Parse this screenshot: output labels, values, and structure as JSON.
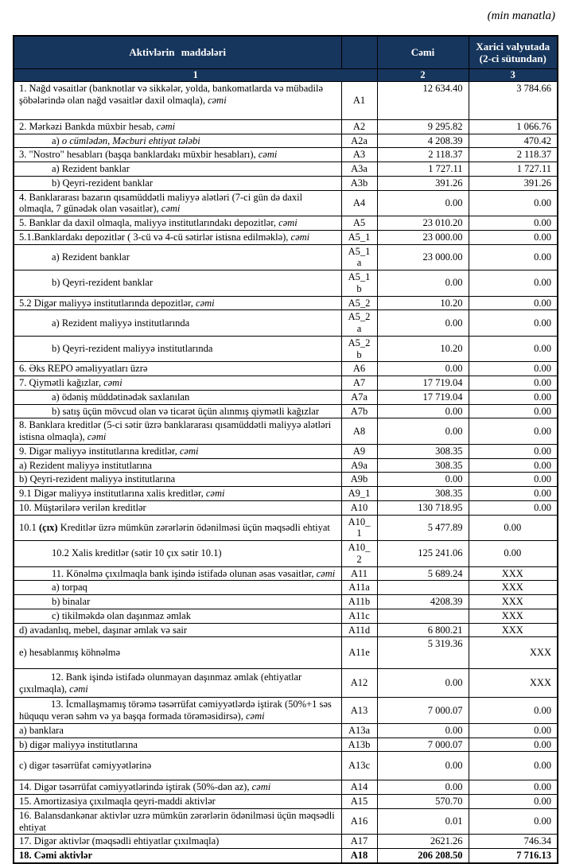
{
  "page": {
    "unit_note": "(min manatla)"
  },
  "colors": {
    "header_bg": "#17365d",
    "header_text": "#ffffff",
    "border": "#000000"
  },
  "table": {
    "header": {
      "items_label": "Aktivlərin  maddələri",
      "total_label": "Cəmi",
      "foreign_label": "Xarici valyutada (2-ci sütundan)",
      "num_items": "1",
      "num_total": "2",
      "num_foreign": "3"
    },
    "rows": [
      {
        "code": "A1",
        "total": "12 634.40",
        "foreign": "3 784.66",
        "cls": "vals-top h48",
        "parts": [
          {
            "t": "1. Nağd vəsaitlər (banknotlar və sikkələr, yolda, bankomatlarda və mübadilə şöbələrində olan nağd vəsaitlər daxil olmaqla), "
          },
          {
            "t": "cəmi",
            "s": "i"
          }
        ]
      },
      {
        "code": "A2",
        "total": "9 295.82",
        "foreign": "1 066.76",
        "cls": "",
        "parts": [
          {
            "t": "2. Mərkəzi Bankda müxbir hesab, "
          },
          {
            "t": "cəmi",
            "s": "i"
          }
        ]
      },
      {
        "code": "A2a",
        "total": "4 208.39",
        "foreign": "470.42",
        "cls": "indent",
        "parts": [
          {
            "t": "a) "
          },
          {
            "t": "o cümlədən, Məcburi ehtiyat tələbi",
            "s": "i"
          }
        ]
      },
      {
        "code": "A3",
        "total": "2 118.37",
        "foreign": "2 118.37",
        "cls": "",
        "parts": [
          {
            "t": "3. \"Nostro\" hesabları (başqa banklardakı müxbir hesabları), "
          },
          {
            "t": "cəmi",
            "s": "i"
          }
        ]
      },
      {
        "code": "A3a",
        "total": "1 727.11",
        "foreign": "1 727.11",
        "cls": "indent",
        "parts": [
          {
            "t": "a) Rezident banklar"
          }
        ]
      },
      {
        "code": "A3b",
        "total": "391.26",
        "foreign": "391.26",
        "cls": "indent",
        "parts": [
          {
            "t": "b) Qeyri-rezident banklar"
          }
        ]
      },
      {
        "code": "A4",
        "total": "0.00",
        "foreign": "0.00",
        "cls": "",
        "parts": [
          {
            "t": "4. Banklararası bazarın qısamüddətli maliyyə alətləri (7-ci gün də daxil olmaqla, 7 günədək olan vəsaitlər), "
          },
          {
            "t": "cəmi",
            "s": "i"
          }
        ]
      },
      {
        "code": "A5",
        "total": "23 010.20",
        "foreign": "0.00",
        "cls": "",
        "parts": [
          {
            "t": "5. Banklar da daxil olmaqla, maliyyə institutlarındakı depozitlər, "
          },
          {
            "t": "cəmi",
            "s": "i"
          }
        ]
      },
      {
        "code": "A5_1",
        "total": "23 000.00",
        "foreign": "0.00",
        "cls": "",
        "parts": [
          {
            "t": "5.1.Banklardakı depozitlər ( 3-cü və 4-cü sətirlər istisna edilməklə), "
          },
          {
            "t": "cəmi",
            "s": "i"
          }
        ]
      },
      {
        "code": "A5_1a",
        "total": "23 000.00",
        "foreign": "0.00",
        "cls": "indent",
        "parts": [
          {
            "t": "a) Rezident banklar"
          }
        ]
      },
      {
        "code": "A5_1b",
        "total": "0.00",
        "foreign": "0.00",
        "cls": "indent",
        "parts": [
          {
            "t": "b) Qeyri-rezident banklar"
          }
        ]
      },
      {
        "code": "A5_2",
        "total": "10.20",
        "foreign": "0.00",
        "cls": "",
        "parts": [
          {
            "t": "5.2 Digər maliyyə institutlarında depozitlər, "
          },
          {
            "t": "cəmi",
            "s": "i"
          }
        ]
      },
      {
        "code": "A5_2a",
        "total": "0.00",
        "foreign": "0.00",
        "cls": "indent",
        "parts": [
          {
            "t": "a) Rezident maliyyə institutlarında"
          }
        ]
      },
      {
        "code": "A5_2b",
        "total": "10.20",
        "foreign": "0.00",
        "cls": "indent",
        "parts": [
          {
            "t": "b) Qeyri-rezident maliyyə institutlarında"
          }
        ]
      },
      {
        "code": "A6",
        "total": "0.00",
        "foreign": "0.00",
        "cls": "",
        "parts": [
          {
            "t": "6. Əks REPO əməliyyatları üzrə"
          }
        ]
      },
      {
        "code": "A7",
        "total": "17 719.04",
        "foreign": "0.00",
        "cls": "",
        "parts": [
          {
            "t": "7. Qiymətli kağızlar, "
          },
          {
            "t": "cəmi",
            "s": "i"
          }
        ]
      },
      {
        "code": "A7a",
        "total": "17 719.04",
        "foreign": "0.00",
        "cls": "indent",
        "parts": [
          {
            "t": "a) ödəniş müddətinədək saxlanılan"
          }
        ]
      },
      {
        "code": "A7b",
        "total": "0.00",
        "foreign": "0.00",
        "cls": "indent",
        "parts": [
          {
            "t": "b) satış üçün mövcud olan  və ticarət üçün alınmış qiymətli kağızlar"
          }
        ]
      },
      {
        "code": "A8",
        "total": "0.00",
        "foreign": "0.00",
        "cls": "",
        "parts": [
          {
            "t": "8. Banklara kreditlər (5-ci sətir üzrə banklararası qısamüddətli maliyyə alətləri istisna olmaqla), "
          },
          {
            "t": "cəmi",
            "s": "i"
          }
        ]
      },
      {
        "code": "A9",
        "total": "308.35",
        "foreign": "0.00",
        "cls": "",
        "parts": [
          {
            "t": "9. Digər maliyyə institutlarına kreditlər, "
          },
          {
            "t": "cəmi",
            "s": "i"
          }
        ]
      },
      {
        "code": "A9a",
        "total": "308.35",
        "foreign": "0.00",
        "cls": "",
        "parts": [
          {
            "t": "a) Rezident maliyyə institutlarına"
          }
        ]
      },
      {
        "code": "A9b",
        "total": "0.00",
        "foreign": "0.00",
        "cls": "",
        "parts": [
          {
            "t": "b) Qeyri-rezident maliyyə institutlarına"
          }
        ]
      },
      {
        "code": "A9_1",
        "total": "308.35",
        "foreign": "0.00",
        "cls": "",
        "parts": [
          {
            "t": "9.1 Digər maliyyə institutlarına xalis kreditlər, "
          },
          {
            "t": "cəmi",
            "s": "i"
          }
        ]
      },
      {
        "code": "A10",
        "total": "130 718.95",
        "foreign": "0.00",
        "cls": "",
        "parts": [
          {
            "t": "10. Müştərilərə verilən kreditlər"
          }
        ]
      },
      {
        "code": "A10_1",
        "total": "5 477.89",
        "foreign": "0.00",
        "cls": "fx-center",
        "parts": [
          {
            "t": "10.1 "
          },
          {
            "t": "(çıx)",
            "s": "b"
          },
          {
            "t": " Kreditlər üzrə mümkün zərərlərin ödənilməsi üçün məqsədli ehtiyat"
          }
        ]
      },
      {
        "code": "A10_2",
        "total": "125 241.06",
        "foreign": "0.00",
        "cls": "indent fx-center",
        "parts": [
          {
            "t": "10.2 Xalis kreditlər (sətir 10 çıx sətir 10.1)"
          }
        ]
      },
      {
        "code": "A11",
        "total": "5 689.24",
        "foreign": "XXX",
        "cls": "indent fx-center",
        "parts": [
          {
            "t": "11. Könəlmə çıxılmaqla bank işində istifadə olunan əsas vəsaitlər, "
          },
          {
            "t": "cəmi",
            "s": "i"
          }
        ]
      },
      {
        "code": "A11a",
        "total": "",
        "foreign": "XXX",
        "cls": "indent fx-center",
        "parts": [
          {
            "t": "a) torpaq"
          }
        ]
      },
      {
        "code": "A11b",
        "total": "4208.39",
        "foreign": "XXX",
        "cls": "indent fx-center",
        "parts": [
          {
            "t": "b) binalar"
          }
        ]
      },
      {
        "code": "A11c",
        "total": "",
        "foreign": "XXX",
        "cls": "indent fx-center",
        "parts": [
          {
            "t": "c) tikilməkdə olan daşınmaz əmlak"
          }
        ]
      },
      {
        "code": "A11d",
        "total": "6 800.21",
        "foreign": "XXX",
        "cls": "fx-center",
        "parts": [
          {
            "t": "d) avadanlıq, mebel, daşınar əmlak və sair"
          }
        ]
      },
      {
        "code": "A11e",
        "total": "5  319.36",
        "foreign": "XXX",
        "cls": "h40 tot-top",
        "parts": [
          {
            "t": "e) hesablanmış köhnəlmə"
          }
        ]
      },
      {
        "code": "A12",
        "total": "0.00",
        "foreign": "XXX",
        "cls": "hang h36",
        "parts": [
          {
            "t": "12. Bank işində istifadə olunmayan daşınmaz əmlak (ehtiyatlar çıxılmaqla), "
          },
          {
            "t": "cəmi",
            "s": "i"
          }
        ]
      },
      {
        "code": "A13",
        "total": "7 000.07",
        "foreign": "0.00",
        "cls": "hang",
        "parts": [
          {
            "t": "13. İcmallaşmamış törəmə təsərrüfat cəmiyyətlərdə iştirak (50%+1 səs hüququ verən səhm və ya başqa formada törəməsidirsə), "
          },
          {
            "t": "cəmi",
            "s": "i"
          }
        ]
      },
      {
        "code": "A13a",
        "total": "0.00",
        "foreign": "0.00",
        "cls": "",
        "parts": [
          {
            "t": "a) banklara"
          }
        ]
      },
      {
        "code": "A13b",
        "total": "7 000.07",
        "foreign": "0.00",
        "cls": "",
        "parts": [
          {
            "t": "b) digər maliyyə institutlarına"
          }
        ]
      },
      {
        "code": "A13c",
        "total": "0.00",
        "foreign": "0.00",
        "cls": "h36",
        "parts": [
          {
            "t": "c) digər təsərrüfat cəmiyyətlərinə"
          }
        ]
      },
      {
        "code": "A14",
        "total": "0.00",
        "foreign": "0.00",
        "cls": "",
        "parts": [
          {
            "t": "14. Digər təsərrüfat cəmiyyətlərində iştirak (50%-dən az), "
          },
          {
            "t": "cəmi",
            "s": "i"
          }
        ]
      },
      {
        "code": "A15",
        "total": "570.70",
        "foreign": "0.00",
        "cls": "",
        "parts": [
          {
            "t": "15. Amortizasiya çıxılmaqla qeyri-maddi aktivlər"
          }
        ]
      },
      {
        "code": "A16",
        "total": "0.01",
        "foreign": "0.00",
        "cls": "",
        "parts": [
          {
            "t": "16. Balansdankənar aktivlər uzrə mümkün zərərlərin ödənilməsi üçün məqsədli ehtiyat"
          }
        ]
      },
      {
        "code": "A17",
        "total": "2621.26",
        "foreign": "746.34",
        "cls": "",
        "parts": [
          {
            "t": "17. Digər aktivlər (məqsədli ehtiyatlar çıxılmaqla)"
          }
        ]
      },
      {
        "code": "A18",
        "total": "206 208.50",
        "foreign": "7 716.13",
        "cls": "bold",
        "parts": [
          {
            "t": "18. Cəmi aktivlər"
          }
        ]
      }
    ]
  }
}
